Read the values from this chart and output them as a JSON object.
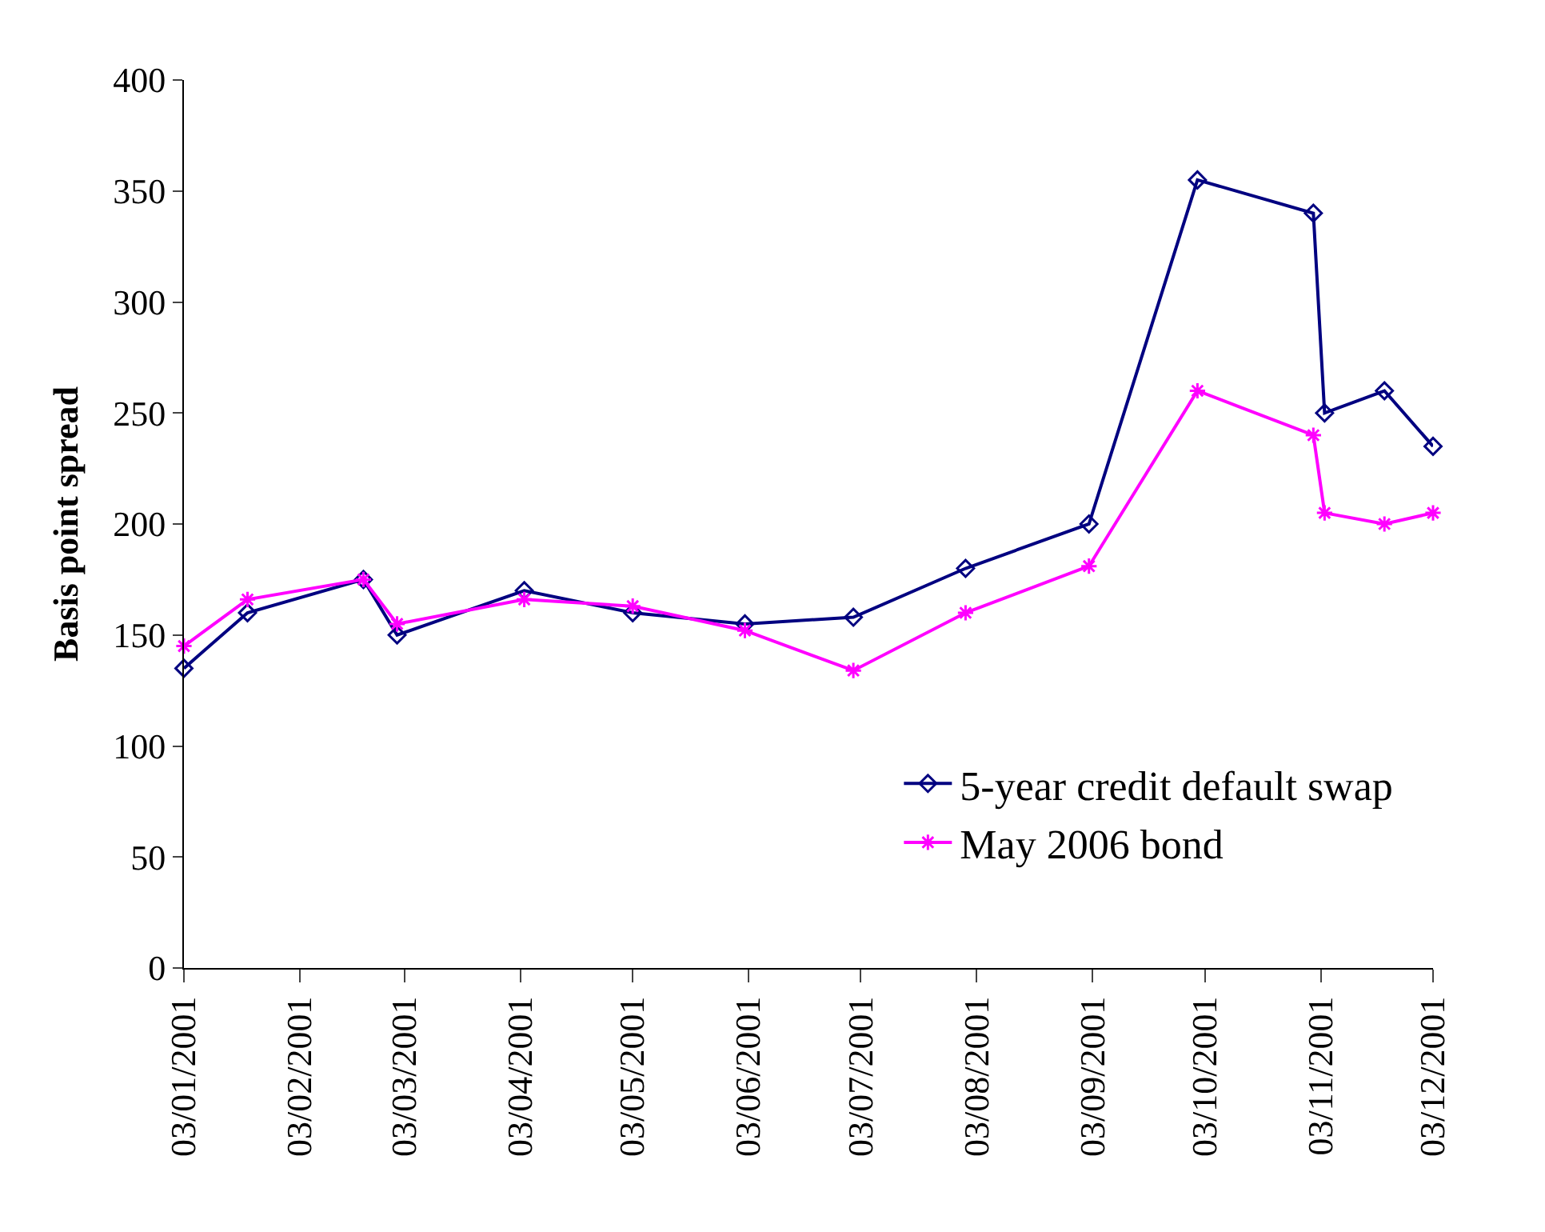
{
  "chart_data": {
    "type": "line",
    "ylabel": "Basis point spread",
    "x": [
      "2001-01-03",
      "2001-01-20",
      "2001-02-20",
      "2001-03-01",
      "2001-04-04",
      "2001-05-03",
      "2001-06-02",
      "2001-07-01",
      "2001-07-31",
      "2001-09-02",
      "2001-10-01",
      "2001-11-01",
      "2001-11-04",
      "2001-11-20",
      "2001-12-03"
    ],
    "series": [
      {
        "name": "5-year credit default swap",
        "color": "#000080",
        "marker": "diamond",
        "values": [
          135,
          160,
          175,
          150,
          170,
          160,
          155,
          158,
          180,
          200,
          355,
          340,
          250,
          260,
          235
        ]
      },
      {
        "name": "May 2006 bond",
        "color": "#ff00ff",
        "marker": "cross",
        "values": [
          145,
          166,
          175,
          155,
          166,
          163,
          152,
          134,
          160,
          181,
          260,
          240,
          205,
          200,
          205
        ]
      }
    ],
    "xlim": [
      "2001-01-03",
      "2001-12-03"
    ],
    "xticks": [
      {
        "value": "2001-01-03",
        "label": "03/01/2001"
      },
      {
        "value": "2001-02-03",
        "label": "03/02/2001"
      },
      {
        "value": "2001-03-03",
        "label": "03/03/2001"
      },
      {
        "value": "2001-04-03",
        "label": "03/04/2001"
      },
      {
        "value": "2001-05-03",
        "label": "03/05/2001"
      },
      {
        "value": "2001-06-03",
        "label": "03/06/2001"
      },
      {
        "value": "2001-07-03",
        "label": "03/07/2001"
      },
      {
        "value": "2001-08-03",
        "label": "03/08/2001"
      },
      {
        "value": "2001-09-03",
        "label": "03/09/2001"
      },
      {
        "value": "2001-10-03",
        "label": "03/10/2001"
      },
      {
        "value": "2001-11-03",
        "label": "03/11/2001"
      },
      {
        "value": "2001-12-03",
        "label": "03/12/2001"
      }
    ],
    "ylim": [
      0,
      400
    ],
    "yticks": [
      0,
      50,
      100,
      150,
      200,
      250,
      300,
      350,
      400
    ],
    "grid": false,
    "legend": "bottom right",
    "line_style": "solid"
  }
}
